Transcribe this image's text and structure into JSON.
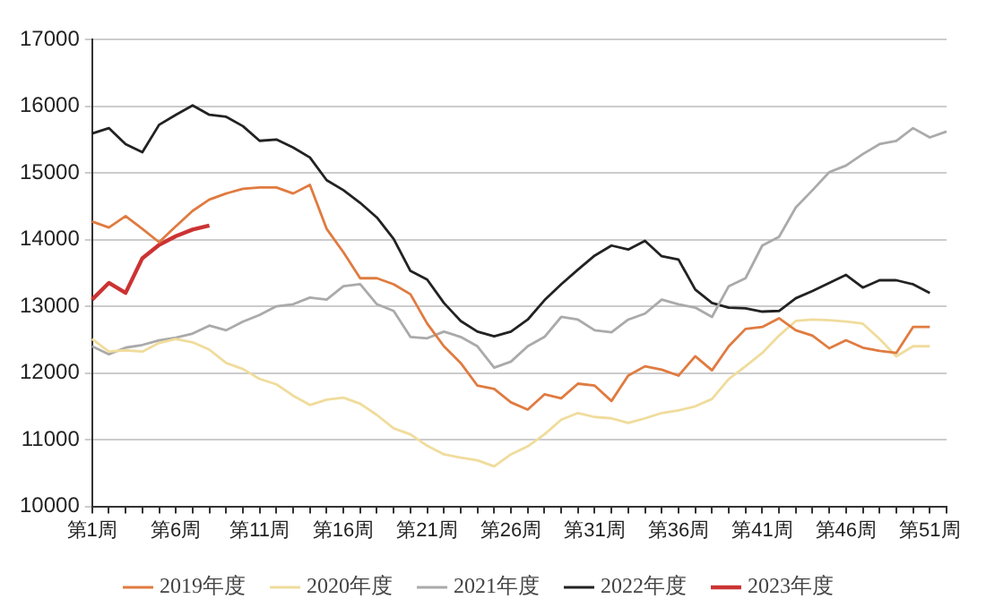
{
  "chart_data": {
    "type": "line",
    "categories": [
      "第1周",
      null,
      null,
      null,
      null,
      "第6周",
      null,
      null,
      null,
      null,
      "第11周",
      null,
      null,
      null,
      null,
      "第16周",
      null,
      null,
      null,
      null,
      "第21周",
      null,
      null,
      null,
      null,
      "第26周",
      null,
      null,
      null,
      null,
      "第31周",
      null,
      null,
      null,
      null,
      "第36周",
      null,
      null,
      null,
      null,
      "第41周",
      null,
      null,
      null,
      null,
      "第46周",
      null,
      null,
      null,
      null,
      "第51周",
      null
    ],
    "series": [
      {
        "name": "2019年度",
        "color": "#e07b40",
        "values": [
          14270,
          14180,
          14350,
          14160,
          13960,
          14200,
          14430,
          14600,
          14690,
          14760,
          14780,
          14780,
          14690,
          14820,
          14160,
          13810,
          13420,
          13420,
          13330,
          13180,
          12740,
          12400,
          12150,
          11810,
          11760,
          11560,
          11450,
          11680,
          11620,
          11840,
          11810,
          11580,
          11960,
          12100,
          12050,
          11960,
          12250,
          12040,
          12400,
          12660,
          12690,
          12820,
          12640,
          12560,
          12370,
          12490,
          12380,
          12330,
          12300,
          12690,
          12690,
          null
        ]
      },
      {
        "name": "2020年度",
        "color": "#f0dc9c",
        "values": [
          12510,
          12320,
          12340,
          12320,
          12450,
          12510,
          12460,
          12350,
          12150,
          12060,
          11910,
          11830,
          11660,
          11520,
          11600,
          11630,
          11540,
          11370,
          11170,
          11080,
          10910,
          10780,
          10730,
          10690,
          10600,
          10780,
          10900,
          11080,
          11300,
          11400,
          11340,
          11320,
          11250,
          11320,
          11400,
          11440,
          11500,
          11610,
          11910,
          12100,
          12300,
          12560,
          12780,
          12800,
          12790,
          12770,
          12740,
          12510,
          12250,
          12400,
          12400,
          null
        ]
      },
      {
        "name": "2021年度",
        "color": "#aaaaaa",
        "values": [
          12400,
          12280,
          12380,
          12420,
          12490,
          12530,
          12590,
          12710,
          12640,
          12770,
          12870,
          13000,
          13030,
          13130,
          13100,
          13300,
          13330,
          13030,
          12930,
          12540,
          12520,
          12620,
          12540,
          12400,
          12080,
          12170,
          12400,
          12540,
          12840,
          12800,
          12640,
          12610,
          12800,
          12890,
          13100,
          13030,
          12980,
          12840,
          13300,
          13420,
          13910,
          14040,
          14480,
          14740,
          15010,
          15110,
          15280,
          15430,
          15480,
          15670,
          15530,
          15620
        ]
      },
      {
        "name": "2022年度",
        "color": "#222222",
        "values": [
          15590,
          15670,
          15430,
          15310,
          15720,
          15870,
          16010,
          15870,
          15840,
          15700,
          15480,
          15500,
          15380,
          15230,
          14890,
          14740,
          14550,
          14330,
          14010,
          13530,
          13400,
          13050,
          12780,
          12620,
          12550,
          12620,
          12800,
          13090,
          13330,
          13550,
          13760,
          13910,
          13850,
          13980,
          13750,
          13700,
          13250,
          13050,
          12980,
          12970,
          12920,
          12930,
          13120,
          13230,
          13350,
          13470,
          13280,
          13390,
          13390,
          13330,
          13200,
          null
        ]
      },
      {
        "name": "2023年度",
        "color": "#cc3333",
        "values": [
          13100,
          13350,
          13200,
          13720,
          13920,
          14050,
          14150,
          14210,
          null,
          null,
          null,
          null,
          null,
          null,
          null,
          null,
          null,
          null,
          null,
          null,
          null,
          null,
          null,
          null,
          null,
          null,
          null,
          null,
          null,
          null,
          null,
          null,
          null,
          null,
          null,
          null,
          null,
          null,
          null,
          null,
          null,
          null,
          null,
          null,
          null,
          null,
          null,
          null,
          null,
          null,
          null,
          null
        ]
      }
    ],
    "ylim": [
      10000,
      17000
    ],
    "yticks": [
      10000,
      11000,
      12000,
      13000,
      14000,
      15000,
      16000,
      17000
    ],
    "grid": "y",
    "legend": "bottom",
    "marker": "none",
    "line_style": "solid"
  }
}
